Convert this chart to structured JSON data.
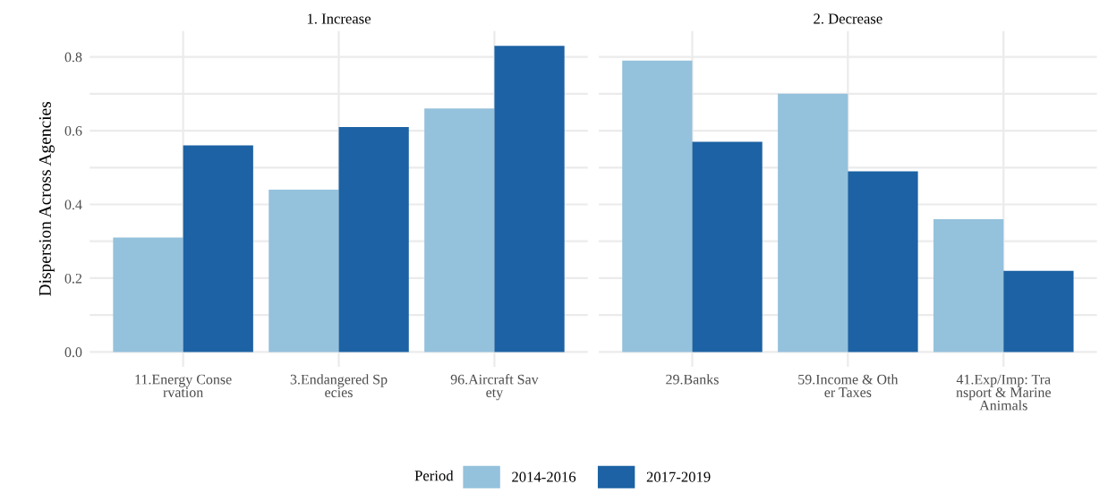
{
  "chart_data": [
    {
      "type": "bar",
      "title": "1. Increase",
      "ylabel": "Dispersion Across Agencies",
      "categories": [
        "11.Energy Conse\nrvation",
        "3.Endangered Sp\necies",
        "96.Aircraft Sav\nety"
      ],
      "series": [
        {
          "name": "2014-2016",
          "color": "#94c1dc",
          "values": [
            0.31,
            0.44,
            0.66
          ]
        },
        {
          "name": "2017-2019",
          "color": "#1c62a4",
          "values": [
            0.56,
            0.61,
            0.83
          ]
        }
      ],
      "ylim": [
        -0.04,
        0.87
      ],
      "yticks": [
        {
          "value": 0,
          "label": "0.0"
        },
        {
          "value": 0.1,
          "label": null
        },
        {
          "value": 0.2,
          "label": "0.2"
        },
        {
          "value": 0.3,
          "label": null
        },
        {
          "value": 0.4,
          "label": "0.4"
        },
        {
          "value": 0.5,
          "label": null
        },
        {
          "value": 0.6,
          "label": "0.6"
        },
        {
          "value": 0.7,
          "label": null
        },
        {
          "value": 0.8,
          "label": "0.8"
        }
      ],
      "grid": true,
      "legend": "bottom",
      "legend_title": "Period"
    },
    {
      "type": "bar",
      "title": "2. Decrease",
      "categories": [
        "29.Banks",
        "59.Income & Oth\ner Taxes",
        "41.Exp/Imp: Tra\nnsport & Marine\nAnimals"
      ],
      "series": [
        {
          "name": "2014-2016",
          "color": "#94c1dc",
          "values": [
            0.79,
            0.7,
            0.36
          ]
        },
        {
          "name": "2017-2019",
          "color": "#1c62a4",
          "values": [
            0.57,
            0.49,
            0.22
          ]
        }
      ],
      "ylim": [
        -0.04,
        0.87
      ],
      "yticks": [
        {
          "value": 0,
          "label": null
        },
        {
          "value": 0.1,
          "label": null
        },
        {
          "value": 0.2,
          "label": null
        },
        {
          "value": 0.3,
          "label": null
        },
        {
          "value": 0.4,
          "label": null
        },
        {
          "value": 0.5,
          "label": null
        },
        {
          "value": 0.6,
          "label": null
        },
        {
          "value": 0.7,
          "label": null
        },
        {
          "value": 0.8,
          "label": null
        }
      ],
      "grid": true,
      "tick_labels": "x",
      "legend": "bottom"
    }
  ]
}
